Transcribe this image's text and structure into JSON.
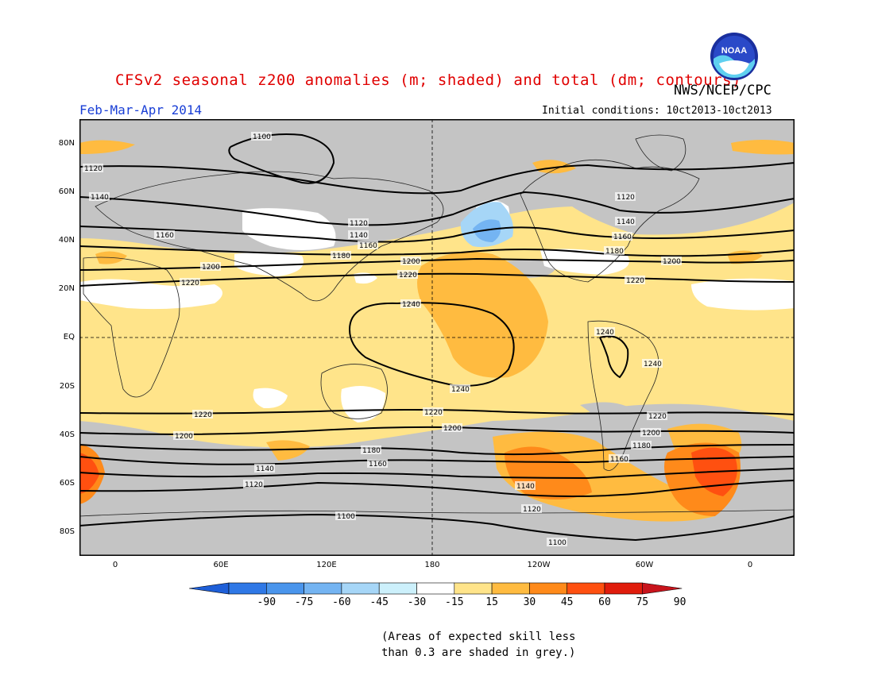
{
  "header": {
    "title": "CFSv2 seasonal z200 anomalies (m; shaded) and total (dm; contours)",
    "season": "Feb-Mar-Apr 2014",
    "agency": "NWS/NCEP/CPC",
    "initial_conditions": "Initial conditions: 10ct2013-10ct2013",
    "logo_text": "NOAA"
  },
  "axes": {
    "lat_labels": [
      "80N",
      "60N",
      "40N",
      "20N",
      "EQ",
      "20S",
      "40S",
      "60S",
      "80S"
    ],
    "lon_labels": [
      "0",
      "60E",
      "120E",
      "180",
      "120W",
      "60W",
      "0"
    ]
  },
  "contours": {
    "labels": [
      "1100",
      "1120",
      "1140",
      "1160",
      "1180",
      "1200",
      "1220",
      "1240"
    ]
  },
  "colorbar": {
    "ticks": [
      "-90",
      "-75",
      "-60",
      "-45",
      "-30",
      "-15",
      "15",
      "30",
      "45",
      "60",
      "75",
      "90"
    ],
    "colors": [
      "#1e5fd8",
      "#2f78e6",
      "#4a95ec",
      "#74b4f2",
      "#a6d6f7",
      "#ccf0fb",
      "#ffffff",
      "#ffe48a",
      "#ffbb40",
      "#ff8a1a",
      "#ff5010",
      "#e01c0c",
      "#c8141c"
    ]
  },
  "map_colors": {
    "grey": "#c4c4c4",
    "white": "#ffffff",
    "light_yellow": "#ffe48a",
    "orange": "#ffbb40",
    "dark_orange": "#ff8a1a",
    "red": "#ff5010",
    "light_blue": "#a6d6f7",
    "blue": "#74b4f2"
  },
  "note": {
    "line1": "(Areas of expected skill less",
    "line2": "than 0.3 are shaded in grey.)"
  }
}
